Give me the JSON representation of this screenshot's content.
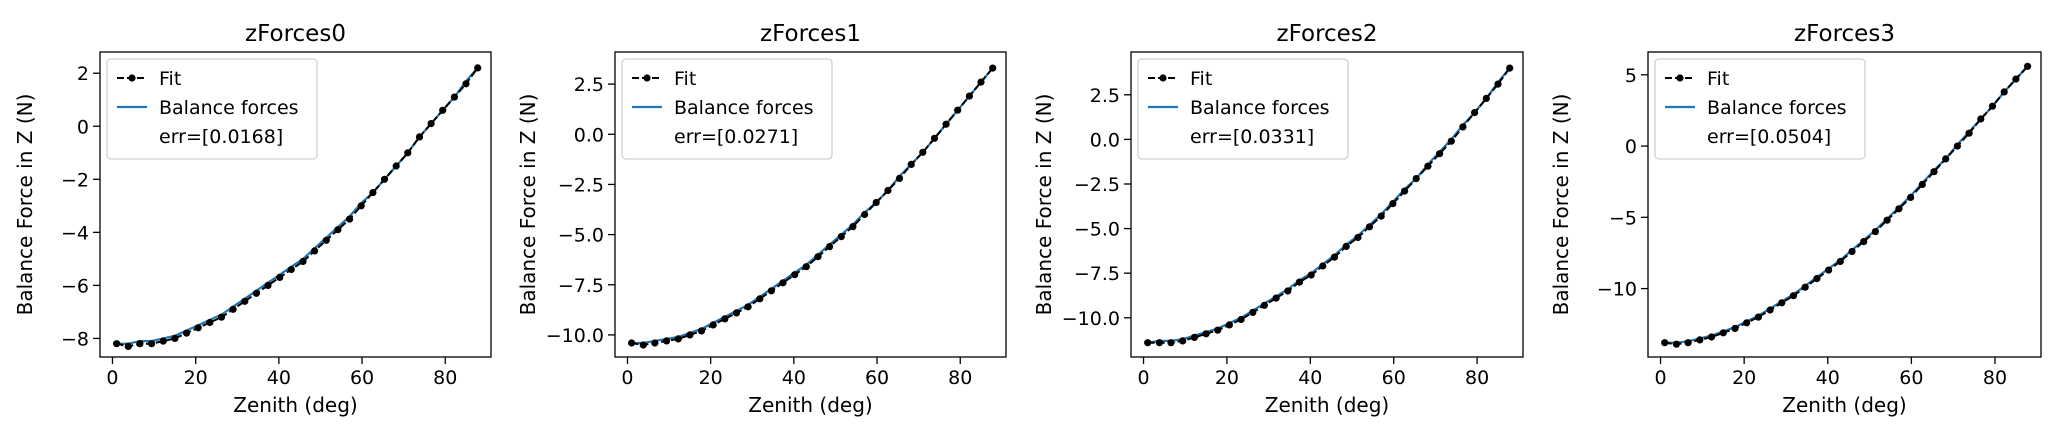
{
  "chart_data": [
    {
      "type": "line",
      "title": "zForces0",
      "xlabel": "Zenith (deg)",
      "ylabel": "Balance Force in Z (N)",
      "xlim": [
        -3,
        91
      ],
      "ylim": [
        -8.7,
        2.8
      ],
      "xticks": [
        0,
        20,
        40,
        60,
        80
      ],
      "yticks": [
        -8,
        -6,
        -4,
        -2,
        0,
        2
      ],
      "ytick_labels": [
        "−8",
        "−6",
        "−4",
        "−2",
        "0",
        "2"
      ],
      "x": [
        1,
        3.8,
        6.6,
        9.4,
        12.2,
        15,
        17.8,
        20.6,
        23.4,
        26.2,
        29,
        31.8,
        34.6,
        37.4,
        40.2,
        43,
        45.8,
        48.6,
        51.4,
        54.2,
        57,
        59.8,
        62.6,
        65.4,
        68.2,
        71,
        73.8,
        76.6,
        79.4,
        82.2,
        85,
        87.8
      ],
      "fit_values": [
        -8.2,
        -8.3,
        -8.2,
        -8.2,
        -8.1,
        -8.0,
        -7.8,
        -7.6,
        -7.4,
        -7.2,
        -6.9,
        -6.6,
        -6.3,
        -6.0,
        -5.7,
        -5.4,
        -5.1,
        -4.7,
        -4.3,
        -3.9,
        -3.5,
        -3.0,
        -2.5,
        -2.0,
        -1.5,
        -1.0,
        -0.4,
        0.1,
        0.6,
        1.1,
        1.6,
        2.2
      ],
      "balance_values": [
        -8.2,
        -8.2,
        -8.1,
        -8.1,
        -8.0,
        -7.9,
        -7.7,
        -7.5,
        -7.3,
        -7.1,
        -6.8,
        -6.5,
        -6.2,
        -5.9,
        -5.6,
        -5.3,
        -5.0,
        -4.6,
        -4.2,
        -3.8,
        -3.4,
        -2.9,
        -2.5,
        -2.0,
        -1.5,
        -1.0,
        -0.4,
        0.1,
        0.6,
        1.1,
        1.7,
        2.2
      ],
      "legend": {
        "placement": "upper-left",
        "fit_label": "Fit",
        "balance_label": "Balance forces",
        "err_label": "err=[0.0168]"
      },
      "colors": {
        "fit": "#000000",
        "balance": "#1f77b4"
      }
    },
    {
      "type": "line",
      "title": "zForces1",
      "xlabel": "Zenith (deg)",
      "ylabel": "Balance Force in Z (N)",
      "xlim": [
        -3,
        91
      ],
      "ylim": [
        -11.1,
        4.1
      ],
      "xticks": [
        0,
        20,
        40,
        60,
        80
      ],
      "yticks": [
        -10,
        -7.5,
        -5,
        -2.5,
        0,
        2.5
      ],
      "ytick_labels": [
        "−10.0",
        "−7.5",
        "−5.0",
        "−2.5",
        "0.0",
        "2.5"
      ],
      "x": [
        1,
        3.8,
        6.6,
        9.4,
        12.2,
        15,
        17.8,
        20.6,
        23.4,
        26.2,
        29,
        31.8,
        34.6,
        37.4,
        40.2,
        43,
        45.8,
        48.6,
        51.4,
        54.2,
        57,
        59.8,
        62.6,
        65.4,
        68.2,
        71,
        73.8,
        76.6,
        79.4,
        82.2,
        85,
        87.8
      ],
      "fit_values": [
        -10.4,
        -10.5,
        -10.4,
        -10.3,
        -10.2,
        -10.0,
        -9.8,
        -9.5,
        -9.2,
        -8.9,
        -8.6,
        -8.2,
        -7.8,
        -7.4,
        -7.0,
        -6.6,
        -6.1,
        -5.6,
        -5.1,
        -4.6,
        -4.0,
        -3.4,
        -2.8,
        -2.2,
        -1.5,
        -0.9,
        -0.2,
        0.5,
        1.2,
        1.9,
        2.6,
        3.3
      ],
      "balance_values": [
        -10.4,
        -10.4,
        -10.3,
        -10.2,
        -10.1,
        -9.9,
        -9.7,
        -9.4,
        -9.1,
        -8.8,
        -8.5,
        -8.1,
        -7.7,
        -7.3,
        -6.9,
        -6.5,
        -6.0,
        -5.5,
        -5.0,
        -4.5,
        -3.9,
        -3.4,
        -2.8,
        -2.1,
        -1.5,
        -0.9,
        -0.2,
        0.5,
        1.2,
        1.9,
        2.6,
        3.3
      ],
      "legend": {
        "placement": "upper-left",
        "fit_label": "Fit",
        "balance_label": "Balance forces",
        "err_label": "err=[0.0271]"
      },
      "colors": {
        "fit": "#000000",
        "balance": "#1f77b4"
      }
    },
    {
      "type": "line",
      "title": "zForces2",
      "xlabel": "Zenith (deg)",
      "ylabel": "Balance Force in Z (N)",
      "xlim": [
        -3,
        91
      ],
      "ylim": [
        -12.2,
        4.9
      ],
      "xticks": [
        0,
        20,
        40,
        60,
        80
      ],
      "yticks": [
        -10,
        -7.5,
        -5,
        -2.5,
        0,
        2.5
      ],
      "ytick_labels": [
        "−10.0",
        "−7.5",
        "−5.0",
        "−2.5",
        "0.0",
        "2.5"
      ],
      "x": [
        1,
        3.8,
        6.6,
        9.4,
        12.2,
        15,
        17.8,
        20.6,
        23.4,
        26.2,
        29,
        31.8,
        34.6,
        37.4,
        40.2,
        43,
        45.8,
        48.6,
        51.4,
        54.2,
        57,
        59.8,
        62.6,
        65.4,
        68.2,
        71,
        73.8,
        76.6,
        79.4,
        82.2,
        85,
        87.8
      ],
      "fit_values": [
        -11.4,
        -11.4,
        -11.4,
        -11.3,
        -11.1,
        -10.9,
        -10.7,
        -10.4,
        -10.1,
        -9.7,
        -9.3,
        -8.9,
        -8.5,
        -8.0,
        -7.6,
        -7.1,
        -6.6,
        -6.0,
        -5.5,
        -4.9,
        -4.3,
        -3.6,
        -2.9,
        -2.2,
        -1.5,
        -0.8,
        -0.1,
        0.7,
        1.5,
        2.3,
        3.1,
        4.0
      ],
      "balance_values": [
        -11.4,
        -11.3,
        -11.3,
        -11.2,
        -11.0,
        -10.8,
        -10.6,
        -10.3,
        -10.0,
        -9.6,
        -9.2,
        -8.8,
        -8.4,
        -7.9,
        -7.5,
        -7.0,
        -6.5,
        -5.9,
        -5.4,
        -4.8,
        -4.2,
        -3.5,
        -2.8,
        -2.2,
        -1.4,
        -0.7,
        0.0,
        0.8,
        1.5,
        2.3,
        3.2,
        4.0
      ],
      "legend": {
        "placement": "upper-left",
        "fit_label": "Fit",
        "balance_label": "Balance forces",
        "err_label": "err=[0.0331]"
      },
      "colors": {
        "fit": "#000000",
        "balance": "#1f77b4"
      }
    },
    {
      "type": "line",
      "title": "zForces3",
      "xlabel": "Zenith (deg)",
      "ylabel": "Balance Force in Z (N)",
      "xlim": [
        -3,
        91
      ],
      "ylim": [
        -14.8,
        6.6
      ],
      "xticks": [
        0,
        20,
        40,
        60,
        80
      ],
      "yticks": [
        -10,
        -5,
        0,
        5
      ],
      "ytick_labels": [
        "−10",
        "−5",
        "0",
        "5"
      ],
      "x": [
        1,
        3.8,
        6.6,
        9.4,
        12.2,
        15,
        17.8,
        20.6,
        23.4,
        26.2,
        29,
        31.8,
        34.6,
        37.4,
        40.2,
        43,
        45.8,
        48.6,
        51.4,
        54.2,
        57,
        59.8,
        62.6,
        65.4,
        68.2,
        71,
        73.8,
        76.6,
        79.4,
        82.2,
        85,
        87.8
      ],
      "fit_values": [
        -13.8,
        -13.9,
        -13.8,
        -13.6,
        -13.4,
        -13.1,
        -12.8,
        -12.4,
        -12.0,
        -11.5,
        -11.0,
        -10.5,
        -9.9,
        -9.3,
        -8.7,
        -8.1,
        -7.4,
        -6.7,
        -6.0,
        -5.2,
        -4.4,
        -3.6,
        -2.7,
        -1.8,
        -0.9,
        0.0,
        0.9,
        1.9,
        2.8,
        3.8,
        4.7,
        5.6
      ],
      "balance_values": [
        -13.8,
        -13.8,
        -13.7,
        -13.5,
        -13.3,
        -13.0,
        -12.7,
        -12.3,
        -11.9,
        -11.4,
        -10.9,
        -10.4,
        -9.8,
        -9.2,
        -8.6,
        -8.0,
        -7.3,
        -6.6,
        -5.9,
        -5.1,
        -4.3,
        -3.5,
        -2.6,
        -1.7,
        -0.9,
        0.1,
        1.0,
        1.9,
        2.8,
        3.8,
        4.7,
        5.6
      ],
      "legend": {
        "placement": "upper-left",
        "fit_label": "Fit",
        "balance_label": "Balance forces",
        "err_label": "err=[0.0504]"
      },
      "colors": {
        "fit": "#000000",
        "balance": "#1f77b4"
      }
    }
  ]
}
